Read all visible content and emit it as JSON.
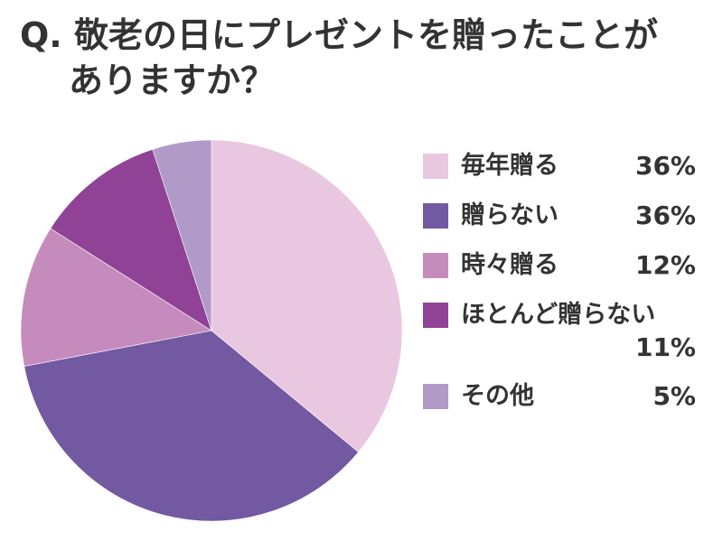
{
  "question": {
    "line1": "Q. 敬老の日にプレゼントを贈ったことが",
    "line2": "ありますか？"
  },
  "chart_data": {
    "type": "pie",
    "title": "Q. 敬老の日にプレゼントを贈ったことがありますか？",
    "start": "12 o'clock",
    "direction": "clockwise",
    "legend_position": "right",
    "slices": [
      {
        "label": "毎年贈る",
        "value": 36,
        "display": "36%",
        "color": "#e9c7e1"
      },
      {
        "label": "贈らない",
        "value": 36,
        "display": "36%",
        "color": "#7259a2"
      },
      {
        "label": "時々贈る",
        "value": 12,
        "display": "12%",
        "color": "#c68bbd"
      },
      {
        "label": "ほとんど贈らない",
        "value": 11,
        "display": "11%",
        "color": "#8f4296"
      },
      {
        "label": "その他",
        "value": 5,
        "display": "5%",
        "color": "#b19ac8"
      }
    ]
  }
}
